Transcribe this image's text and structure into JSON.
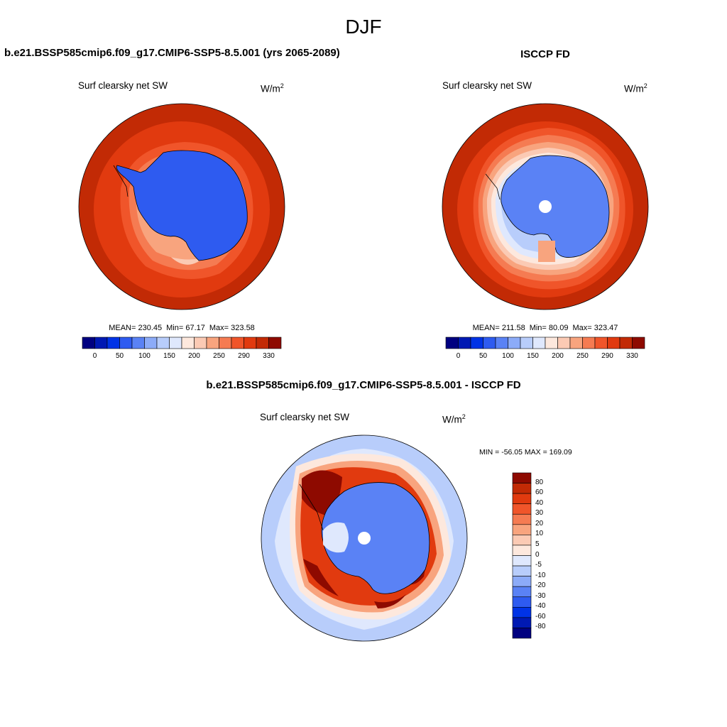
{
  "figure": {
    "season": "DJF",
    "case_title": "b.e21.BSSP585cmip6.f09_g17.CMIP6-SSP5-8.5.001 (yrs 2065-2089)",
    "obs_title": "ISCCP FD",
    "diff_title": "b.e21.BSSP585cmip6.f09_g17.CMIP6-SSP5-8.5.001 - ISCCP FD"
  },
  "panels": {
    "model": {
      "variable": "Surf clearsky net SW",
      "unit": "W/m",
      "unit_sup": "2",
      "mean_label": "MEAN=",
      "mean": "230.45",
      "min_label": "Min=",
      "min": "67.17",
      "max_label": "Max=",
      "max": "323.58"
    },
    "obs": {
      "variable": "Surf clearsky net SW",
      "unit": "W/m",
      "unit_sup": "2",
      "mean_label": "MEAN=",
      "mean": "211.58",
      "min_label": "Min=",
      "min": "80.09",
      "max_label": "Max=",
      "max": "323.47"
    },
    "diff": {
      "variable": "Surf clearsky net SW",
      "unit": "W/m",
      "unit_sup": "2",
      "minmax": "MIN = -56.05 MAX = 169.09"
    }
  },
  "colorbars": {
    "absolute": {
      "colors": [
        "#000080",
        "#0019b3",
        "#0033e6",
        "#2e5bf0",
        "#5a82f5",
        "#8cabf8",
        "#b8cdfb",
        "#dfe8fd",
        "#fde8dd",
        "#fbcab4",
        "#f8a47e",
        "#f57b52",
        "#f0552a",
        "#e13a0f",
        "#c22a05",
        "#8e0a00"
      ],
      "tick_labels": [
        "0",
        "50",
        "100",
        "150",
        "200",
        "250",
        "290",
        "330"
      ]
    },
    "difference": {
      "colors": [
        "#8e0a00",
        "#c22a05",
        "#e13a0f",
        "#f0552a",
        "#f57b52",
        "#f8a47e",
        "#fbcab4",
        "#fde8dd",
        "#dfe8fd",
        "#b8cdfb",
        "#8cabf8",
        "#5a82f5",
        "#2e5bf0",
        "#0033e6",
        "#0019b3",
        "#000080"
      ],
      "level_labels": [
        "80",
        "60",
        "40",
        "30",
        "20",
        "10",
        "5",
        "0",
        "-5",
        "-10",
        "-20",
        "-30",
        "-40",
        "-60",
        "-80"
      ]
    }
  },
  "colors": {
    "ocean_far": "#c22a05",
    "ocean_mid": "#e13a0f",
    "ice_edge": "#f8a47e",
    "continent_model": "#2e5bf0",
    "continent_obs": "#5a82f5",
    "diff_ocean": "#dfe8fd",
    "diff_positive": "#e13a0f",
    "diff_strong": "#8e0a00",
    "diff_negative": "#5a82f5"
  }
}
